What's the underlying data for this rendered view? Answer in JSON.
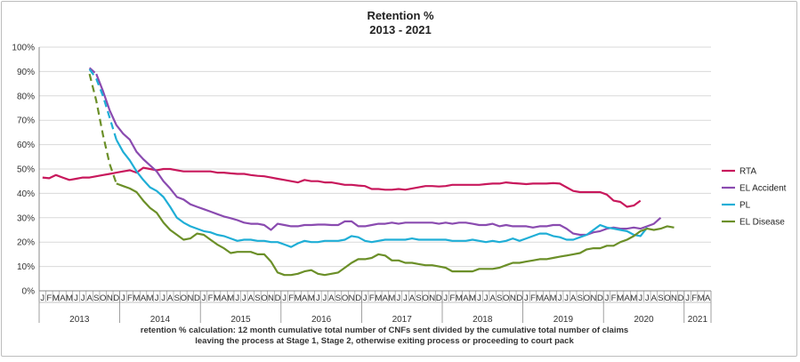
{
  "chart_data": {
    "type": "line",
    "title": "Retention %",
    "subtitle": "2013 - 2021",
    "xlabel": "",
    "ylabel": "",
    "ylim": [
      0,
      100
    ],
    "yticks": [
      "0%",
      "10%",
      "20%",
      "30%",
      "40%",
      "50%",
      "60%",
      "70%",
      "80%",
      "90%",
      "100%"
    ],
    "x_start": "2013-01",
    "month_letters": [
      "J",
      "F",
      "M",
      "A",
      "M",
      "J",
      "J",
      "A",
      "S",
      "O",
      "N",
      "D"
    ],
    "years": [
      "2013",
      "2014",
      "2015",
      "2016",
      "2017",
      "2018",
      "2019",
      "2020",
      "2021"
    ],
    "annotation": [
      "retention % calculation:  12 month cumulative total number of CNFs sent divided by the cumulative total number of claims",
      "leaving the process at Stage 1, Stage  2, otherwise exiting process or proceeding to court  pack"
    ],
    "legend_position": "right",
    "grid": true,
    "series": [
      {
        "name": "RTA",
        "color": "#c8185c",
        "values": [
          46.5,
          46.2,
          47.5,
          46.5,
          45.5,
          46,
          46.5,
          46.5,
          47,
          47.5,
          48,
          48.5,
          49,
          49.5,
          48.5,
          50.5,
          50,
          49.5,
          50,
          50,
          49.5,
          49,
          49,
          49,
          49,
          49,
          48.5,
          48.5,
          48.2,
          48,
          48,
          47.5,
          47.2,
          47,
          46.5,
          46,
          45.5,
          45,
          44.5,
          45.5,
          45,
          45,
          44.5,
          44.5,
          44,
          43.5,
          43.5,
          43.2,
          43,
          41.8,
          41.8,
          41.5,
          41.5,
          41.8,
          41.5,
          42,
          42.5,
          43,
          43,
          42.8,
          43,
          43.5,
          43.5,
          43.5,
          43.5,
          43.5,
          43.8,
          44,
          44,
          44.5,
          44.2,
          44,
          43.8,
          44,
          44,
          44,
          44.2,
          44,
          42.5,
          41,
          40.5,
          40.5,
          40.5,
          40.5,
          39.5,
          37,
          36.5,
          34.5,
          35,
          37
        ]
      },
      {
        "name": "EL Accident",
        "color": "#8a4bb0",
        "dashed_until": 8,
        "values": [
          null,
          null,
          null,
          null,
          null,
          null,
          null,
          91.5,
          89,
          82,
          74,
          68,
          64.5,
          62,
          57,
          54,
          51.5,
          49,
          45,
          42,
          38.5,
          37.5,
          35.5,
          34.5,
          33.5,
          32.5,
          31.5,
          30.5,
          29.8,
          29,
          28,
          27.5,
          27.5,
          27,
          25,
          27.5,
          27,
          26.5,
          26.5,
          27,
          27,
          27.2,
          27.2,
          27,
          27,
          28.5,
          28.5,
          26.5,
          26.5,
          27,
          27.5,
          27.5,
          28,
          27.5,
          28,
          28,
          28,
          28,
          28,
          27.5,
          28,
          27.5,
          28,
          28,
          27.5,
          27,
          27,
          27.5,
          26.5,
          27,
          26.5,
          26.5,
          26.5,
          26,
          26.5,
          26.5,
          27,
          27,
          25.5,
          23.5,
          23,
          23,
          24,
          24.5,
          25.5,
          26,
          25.5,
          25.5,
          26,
          25.5,
          26.5,
          27.5,
          30
        ]
      },
      {
        "name": "PL",
        "color": "#1faed6",
        "dashed_until": 11,
        "values": [
          null,
          null,
          null,
          null,
          null,
          null,
          null,
          91,
          87,
          80,
          71,
          62,
          57,
          53.5,
          49,
          45.5,
          42.5,
          41,
          38.5,
          34.5,
          30,
          28,
          26.5,
          25.5,
          24.5,
          24,
          23,
          22.5,
          21.5,
          20.5,
          21,
          21,
          20.5,
          20.5,
          20,
          20,
          19,
          18,
          19.5,
          20.5,
          20,
          20,
          20.5,
          20.5,
          20.5,
          21,
          22.5,
          22,
          20.5,
          20,
          20.5,
          21,
          21,
          21,
          21,
          21.5,
          21,
          21,
          21,
          21,
          21,
          20.5,
          20.5,
          20.5,
          21,
          20.5,
          20,
          20.5,
          20,
          20.5,
          21.5,
          20.5,
          21.5,
          22.5,
          23.5,
          23.5,
          22.5,
          22,
          21,
          21,
          22,
          23,
          25,
          27,
          26,
          25.5,
          25,
          24.5,
          23,
          22.5,
          26
        ]
      },
      {
        "name": "EL Disease",
        "color": "#6b8f28",
        "dashed_until": 11,
        "values": [
          null,
          null,
          null,
          null,
          null,
          null,
          null,
          89,
          78,
          64,
          52,
          44,
          43,
          42,
          40.5,
          37,
          34,
          32,
          28,
          25,
          23,
          21,
          21.5,
          23.5,
          23,
          21,
          19,
          17.5,
          15.5,
          16,
          16,
          16,
          15,
          15,
          12,
          7.5,
          6.5,
          6.5,
          7,
          8,
          8.5,
          7,
          6.5,
          7,
          7.5,
          9.5,
          11.5,
          13,
          13,
          13.5,
          15,
          14.5,
          12.5,
          12.5,
          11.5,
          11.5,
          11,
          10.5,
          10.5,
          10,
          9.5,
          8,
          8,
          8,
          8,
          9,
          9,
          9,
          9.5,
          10.5,
          11.5,
          11.5,
          12,
          12.5,
          13,
          13,
          13.5,
          14,
          14.5,
          15,
          15.5,
          17,
          17.5,
          17.5,
          18.5,
          18.5,
          20,
          21,
          22.5,
          24.5,
          25.5,
          25,
          25.5,
          26.5,
          26
        ]
      }
    ]
  }
}
